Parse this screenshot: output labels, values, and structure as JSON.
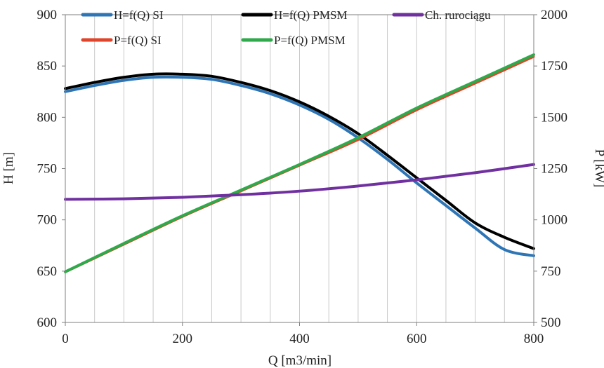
{
  "chart_data": {
    "type": "line",
    "title": "",
    "xlabel": "Q [m3/min]",
    "ylabel": "H [m]",
    "y2label": "P [kW]",
    "xlim": [
      0,
      800
    ],
    "ylim": [
      600,
      900
    ],
    "y2lim": [
      500,
      2000
    ],
    "xticks": [
      "0",
      "200",
      "400",
      "600",
      "800"
    ],
    "yticks": [
      "600",
      "650",
      "700",
      "750",
      "800",
      "850",
      "900"
    ],
    "y2ticks": [
      "500",
      "750",
      "1000",
      "1250",
      "1500",
      "1750",
      "2000"
    ],
    "grid": "vertical",
    "legend_position": "top",
    "series": [
      {
        "name": "H=f(Q) SI",
        "axis": "left",
        "color": "#2e75b6",
        "x": [
          0,
          50,
          100,
          150,
          200,
          250,
          300,
          350,
          400,
          450,
          500,
          550,
          600,
          650,
          700,
          750,
          800
        ],
        "y": [
          825,
          831,
          836,
          839,
          839,
          837,
          831,
          823,
          812,
          798,
          780,
          759,
          736,
          714,
          692,
          671,
          665
        ]
      },
      {
        "name": "H=f(Q) PMSM",
        "axis": "left",
        "color": "#000000",
        "x": [
          0,
          50,
          100,
          150,
          200,
          250,
          300,
          350,
          400,
          450,
          500,
          550,
          600,
          650,
          700,
          750,
          800
        ],
        "y": [
          828,
          834,
          839,
          842,
          842,
          840,
          834,
          826,
          815,
          801,
          784,
          763,
          741,
          719,
          697,
          683,
          672
        ]
      },
      {
        "name": "Ch. rurociągu",
        "axis": "left",
        "color": "#7030a0",
        "x": [
          0,
          100,
          200,
          300,
          400,
          500,
          600,
          700,
          800
        ],
        "y": [
          720,
          720.5,
          722,
          724.5,
          728,
          733,
          739,
          746,
          754
        ]
      },
      {
        "name": "P=f(Q) SI",
        "axis": "right",
        "color": "#e0452b",
        "x": [
          0,
          100,
          200,
          300,
          400,
          500,
          600,
          700,
          800
        ],
        "y": [
          745,
          880,
          1015,
          1140,
          1265,
          1390,
          1535,
          1665,
          1795
        ]
      },
      {
        "name": "P=f(Q) PMSM",
        "axis": "right",
        "color": "#2eaa4a",
        "x": [
          0,
          100,
          200,
          300,
          400,
          500,
          600,
          700,
          800
        ],
        "y": [
          747,
          885,
          1020,
          1145,
          1270,
          1400,
          1545,
          1675,
          1805
        ]
      }
    ]
  }
}
